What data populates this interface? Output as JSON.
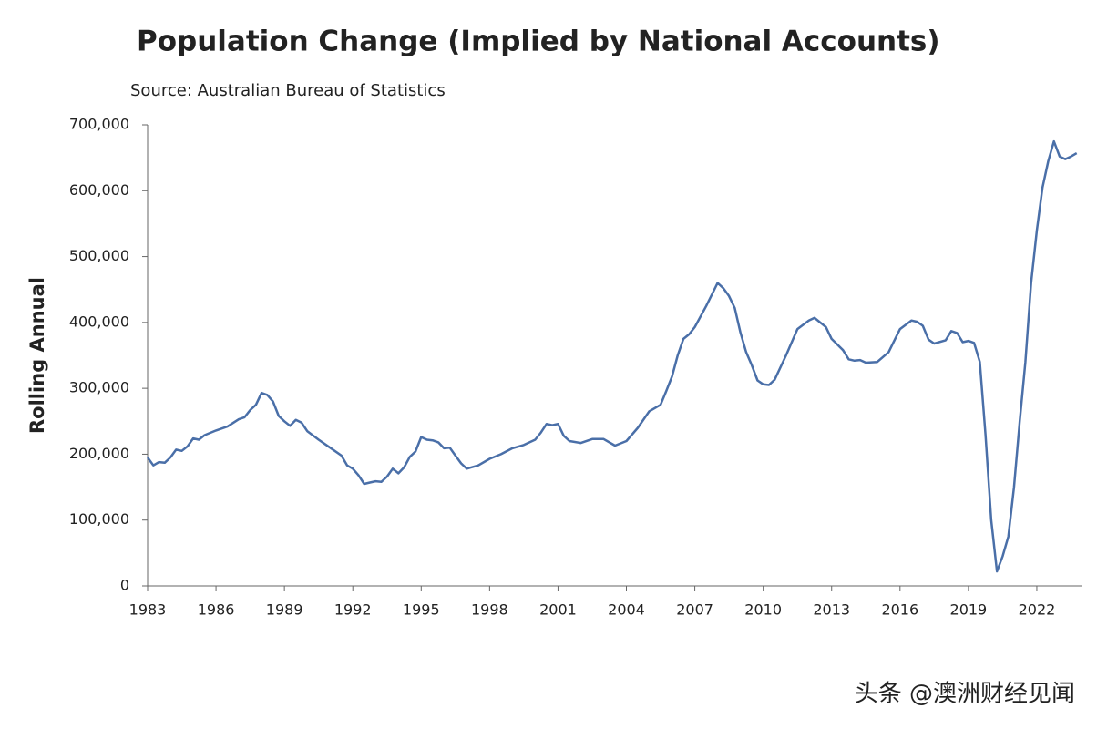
{
  "chart_data": {
    "type": "line",
    "title": "Population Change (Implied by National Accounts)",
    "subtitle": "Source: Australian Bureau of Statistics",
    "y_label": "Rolling Annual",
    "watermark": "头条 @澳洲财经见闻",
    "color": "#4a6fa8",
    "xlim": [
      1983,
      2024
    ],
    "xticks": [
      1983,
      1986,
      1989,
      1992,
      1995,
      1998,
      2001,
      2004,
      2007,
      2010,
      2013,
      2016,
      2019,
      2022
    ],
    "ylim": [
      0,
      700000
    ],
    "yticks": [
      0,
      {
        "value": 100000,
        "label": "100,000"
      },
      {
        "value": 200000,
        "label": "200,000"
      },
      {
        "value": 300000,
        "label": "300,000"
      },
      {
        "value": 400000,
        "label": "400,000"
      },
      {
        "value": 500000,
        "label": "500,000"
      },
      {
        "value": 600000,
        "label": "600,000"
      },
      {
        "value": 700000,
        "label": "700,000"
      }
    ],
    "x": [
      1983,
      1983.25,
      1983.5,
      1983.75,
      1984,
      1984.25,
      1984.5,
      1984.75,
      1985,
      1985.25,
      1985.5,
      1986,
      1986.5,
      1987,
      1987.25,
      1987.5,
      1987.75,
      1988,
      1988.25,
      1988.5,
      1988.75,
      1989,
      1989.25,
      1989.5,
      1989.75,
      1990,
      1990.5,
      1991,
      1991.5,
      1991.75,
      1992,
      1992.25,
      1992.5,
      1992.75,
      1993,
      1993.25,
      1993.5,
      1993.75,
      1994,
      1994.25,
      1994.5,
      1994.75,
      1995,
      1995.25,
      1995.5,
      1995.75,
      1996,
      1996.25,
      1996.5,
      1996.75,
      1997,
      1997.5,
      1998,
      1998.5,
      1999,
      1999.5,
      2000,
      2000.25,
      2000.5,
      2000.75,
      2001,
      2001.25,
      2001.5,
      2002,
      2002.5,
      2003,
      2003.5,
      2004,
      2004.5,
      2005,
      2005.5,
      2005.75,
      2006,
      2006.25,
      2006.5,
      2006.75,
      2007,
      2007.5,
      2008,
      2008.25,
      2008.5,
      2008.75,
      2009,
      2009.25,
      2009.5,
      2009.75,
      2010,
      2010.25,
      2010.5,
      2011,
      2011.5,
      2012,
      2012.25,
      2012.5,
      2012.75,
      2013,
      2013.5,
      2013.75,
      2014,
      2014.25,
      2014.5,
      2015,
      2015.5,
      2016,
      2016.5,
      2016.75,
      2017,
      2017.25,
      2017.5,
      2018,
      2018.25,
      2018.5,
      2018.75,
      2019,
      2019.25,
      2019.5,
      2019.75,
      2020,
      2020.25,
      2020.5,
      2020.75,
      2021,
      2021.25,
      2021.5,
      2021.75,
      2022,
      2022.25,
      2022.5,
      2022.75,
      2023,
      2023.25,
      2023.5,
      2023.75
    ],
    "values": [
      195000,
      183000,
      188000,
      187000,
      195000,
      207000,
      205000,
      212000,
      224000,
      222000,
      229000,
      236000,
      242000,
      253000,
      256000,
      267000,
      275000,
      293000,
      290000,
      280000,
      258000,
      250000,
      243000,
      252000,
      248000,
      235000,
      222000,
      210000,
      198000,
      183000,
      178000,
      168000,
      155000,
      157000,
      159000,
      158000,
      166000,
      178000,
      171000,
      180000,
      196000,
      204000,
      226000,
      222000,
      221000,
      218000,
      209000,
      210000,
      198000,
      186000,
      178000,
      183000,
      193000,
      200000,
      209000,
      214000,
      222000,
      233000,
      246000,
      244000,
      246000,
      228000,
      220000,
      217000,
      223000,
      223000,
      213000,
      220000,
      240000,
      265000,
      275000,
      296000,
      318000,
      350000,
      375000,
      382000,
      393000,
      425000,
      460000,
      452000,
      440000,
      422000,
      385000,
      355000,
      335000,
      312000,
      306000,
      305000,
      313000,
      350000,
      390000,
      403000,
      407000,
      400000,
      393000,
      375000,
      358000,
      344000,
      342000,
      343000,
      339000,
      340000,
      355000,
      390000,
      403000,
      401000,
      395000,
      374000,
      368000,
      373000,
      387000,
      384000,
      370000,
      372000,
      369000,
      340000,
      230000,
      100000,
      22000,
      45000,
      75000,
      150000,
      250000,
      340000,
      460000,
      540000,
      605000,
      645000,
      675000,
      652000,
      648000,
      652000,
      657000
    ]
  }
}
